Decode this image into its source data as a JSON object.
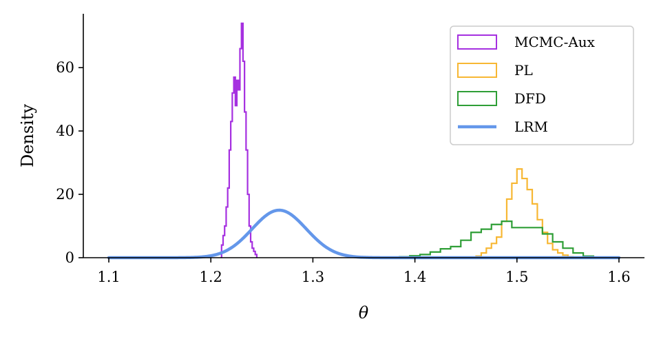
{
  "chart_data": {
    "type": "histogram",
    "title": "",
    "xlabel": "θ",
    "ylabel": "Density",
    "xlim": [
      1.075,
      1.625
    ],
    "ylim": [
      0,
      77
    ],
    "xticks": [
      1.1,
      1.2,
      1.3,
      1.4,
      1.5,
      1.6
    ],
    "xtick_labels": [
      "1.1",
      "1.2",
      "1.3",
      "1.4",
      "1.5",
      "1.6"
    ],
    "yticks": [
      0,
      20,
      40,
      60
    ],
    "ytick_labels": [
      "0",
      "20",
      "40",
      "60"
    ],
    "grid": false,
    "legend": "top-right",
    "series": [
      {
        "name": "MCMC-Aux",
        "kind": "step",
        "color": "#a52fe0",
        "edges": [
          1.2105,
          1.212,
          1.2135,
          1.215,
          1.2165,
          1.218,
          1.2195,
          1.221,
          1.2225,
          1.224,
          1.2255,
          1.227,
          1.2285,
          1.23,
          1.2315,
          1.233,
          1.2345,
          1.236,
          1.2375,
          1.239,
          1.2405,
          1.242,
          1.2435,
          1.245
        ],
        "values": [
          4,
          7,
          10,
          16,
          22,
          34,
          43,
          52,
          57,
          48,
          56,
          53,
          66,
          74,
          62,
          46,
          34,
          20,
          10,
          5,
          3,
          2,
          1
        ]
      },
      {
        "name": "PL",
        "kind": "step",
        "color": "#f7b733",
        "edges": [
          1.46,
          1.465,
          1.47,
          1.475,
          1.48,
          1.485,
          1.49,
          1.495,
          1.5,
          1.505,
          1.51,
          1.515,
          1.52,
          1.525,
          1.53,
          1.535,
          1.54,
          1.545,
          1.55,
          1.555
        ],
        "values": [
          0.5,
          1.5,
          3,
          4.5,
          6.5,
          11.5,
          18.5,
          23.5,
          28,
          25,
          21.5,
          17,
          12,
          8,
          4.5,
          2.5,
          1.5,
          0.8,
          0.3
        ]
      },
      {
        "name": "DFD",
        "kind": "step",
        "color": "#2e9e36",
        "edges": [
          1.385,
          1.395,
          1.405,
          1.415,
          1.425,
          1.435,
          1.445,
          1.455,
          1.465,
          1.475,
          1.485,
          1.495,
          1.505,
          1.515,
          1.525,
          1.535,
          1.545,
          1.555,
          1.565,
          1.575
        ],
        "values": [
          0.3,
          0.6,
          1,
          1.8,
          2.8,
          3.5,
          5.5,
          8,
          9,
          10.5,
          11.5,
          9.5,
          9.5,
          9.5,
          7.5,
          5,
          3,
          1.5,
          0.5
        ]
      },
      {
        "name": "LRM",
        "kind": "curve",
        "color": "#6497ea",
        "mean": 1.267,
        "sd": 0.0265,
        "peak": 15,
        "x_range": [
          1.1,
          1.6
        ]
      }
    ]
  }
}
